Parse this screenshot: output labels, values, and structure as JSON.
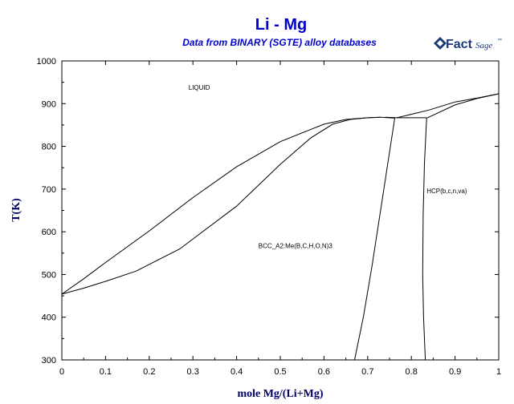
{
  "header": {
    "title": "Li - Mg",
    "subtitle": "Data from BINARY (SGTE) alloy databases",
    "logo_text_main": "Fact",
    "logo_text_sub": "Sage",
    "logo_mark": "™"
  },
  "chart_data": {
    "type": "line",
    "title": "Li - Mg",
    "subtitle": "Data from BINARY (SGTE) alloy databases",
    "xlabel": "mole Mg/(Li+Mg)",
    "ylabel": "T(K)",
    "xlim": [
      0,
      1
    ],
    "ylim": [
      300,
      1000
    ],
    "xticks": [
      0,
      0.1,
      0.2,
      0.3,
      0.4,
      0.5,
      0.6,
      0.7,
      0.8,
      0.9,
      1
    ],
    "xtick_labels": [
      "0",
      "0.1",
      "0.2",
      "0.3",
      "0.4",
      "0.5",
      "0.6",
      "0.7",
      "0.8",
      "0.9",
      "1"
    ],
    "yticks": [
      300,
      400,
      500,
      600,
      700,
      800,
      900,
      1000
    ],
    "ytick_labels": [
      "300",
      "400",
      "500",
      "600",
      "700",
      "800",
      "900",
      "1000"
    ],
    "grid": false,
    "annotations": [
      {
        "text": "LIQUID",
        "x": 0.29,
        "y": 932
      },
      {
        "text": "HCP(b,c,n,va)",
        "x": 0.835,
        "y": 690
      },
      {
        "text": "BCC_A2:Me(B,C,H,O,N)3",
        "x": 0.45,
        "y": 562
      }
    ],
    "series": [
      {
        "points": [
          [
            0,
            454
          ],
          [
            0.05,
            490
          ],
          [
            0.1,
            528
          ],
          [
            0.2,
            602
          ],
          [
            0.3,
            680
          ],
          [
            0.4,
            752
          ],
          [
            0.5,
            811
          ],
          [
            0.6,
            852
          ],
          [
            0.65,
            863
          ],
          [
            0.7,
            867
          ],
          [
            0.73,
            868
          ]
        ]
      },
      {
        "points": [
          [
            0,
            454
          ],
          [
            0.05,
            468
          ],
          [
            0.1,
            484
          ],
          [
            0.17,
            508
          ],
          [
            0.27,
            560
          ],
          [
            0.4,
            660
          ],
          [
            0.5,
            758
          ],
          [
            0.57,
            820
          ],
          [
            0.62,
            852
          ],
          [
            0.66,
            863
          ],
          [
            0.7,
            867
          ],
          [
            0.73,
            868
          ]
        ]
      },
      {
        "points": [
          [
            0.73,
            868
          ],
          [
            0.762,
            866
          ]
        ]
      },
      {
        "points": [
          [
            0.74,
            868
          ],
          [
            0.767,
            867
          ],
          [
            0.835,
            867
          ]
        ]
      },
      {
        "points": [
          [
            0.762,
            866
          ],
          [
            0.74,
            720
          ],
          [
            0.71,
            520
          ],
          [
            0.69,
            400
          ],
          [
            0.67,
            300
          ]
        ]
      },
      {
        "points": [
          [
            0.835,
            866
          ],
          [
            0.83,
            760
          ],
          [
            0.827,
            640
          ],
          [
            0.826,
            500
          ],
          [
            0.828,
            400
          ],
          [
            0.832,
            300
          ]
        ]
      },
      {
        "points": [
          [
            0.767,
            867
          ],
          [
            0.84,
            885
          ],
          [
            0.9,
            904
          ],
          [
            0.95,
            913
          ],
          [
            1,
            923
          ]
        ]
      },
      {
        "points": [
          [
            0.835,
            866
          ],
          [
            0.9,
            897
          ],
          [
            0.95,
            912
          ],
          [
            1,
            923
          ]
        ]
      }
    ]
  }
}
